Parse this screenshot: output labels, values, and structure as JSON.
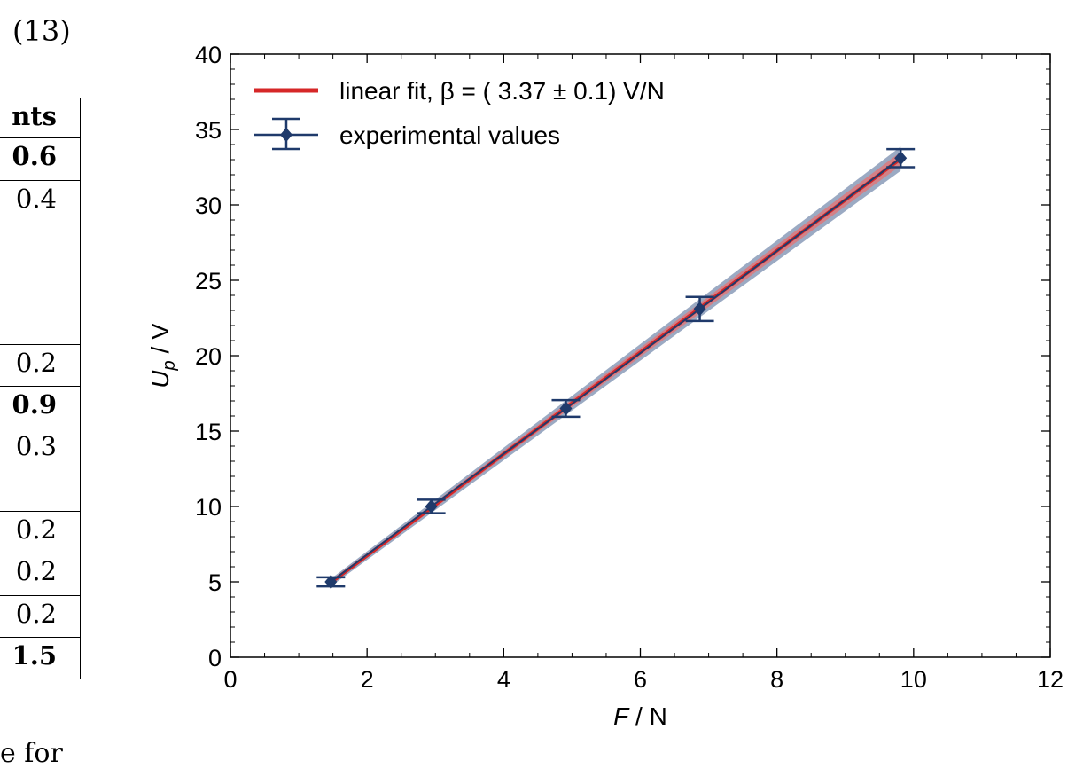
{
  "equation_number": "(13)",
  "table": {
    "header": "nts",
    "rows": [
      {
        "value": "0.6",
        "bold": true
      },
      {
        "value": "0.4",
        "bold": false
      },
      {
        "value": "0.2",
        "bold": false
      },
      {
        "value": "0.9",
        "bold": true
      },
      {
        "value": "0.3",
        "bold": false
      },
      {
        "value": "0.2",
        "bold": false
      },
      {
        "value": "0.2",
        "bold": false
      },
      {
        "value": "0.2",
        "bold": false
      },
      {
        "value": "1.5",
        "bold": true
      }
    ]
  },
  "bottom_text": "e for",
  "chart_data": {
    "type": "scatter",
    "xlabel_var": "F",
    "xlabel_unit": " / N",
    "ylabel_var": "U",
    "ylabel_sub": "p",
    "ylabel_unit": " / V",
    "xlim": [
      0,
      12
    ],
    "ylim": [
      0,
      40
    ],
    "xticks": [
      0,
      2,
      4,
      6,
      8,
      10,
      12
    ],
    "yticks": [
      0,
      5,
      10,
      15,
      20,
      25,
      30,
      35,
      40
    ],
    "grid": false,
    "legend_placement": "top-left",
    "series": [
      {
        "name": "linear fit, β = ( 3.37 ± 0.1) V/N",
        "kind": "line",
        "color": "#d62728",
        "slope": 3.37,
        "x_range": [
          1.47,
          9.81
        ]
      },
      {
        "name": "experimental values",
        "kind": "errorbar",
        "color": "#1f3a6b",
        "x": [
          1.47,
          2.94,
          4.91,
          6.87,
          9.81
        ],
        "y": [
          5.0,
          10.0,
          16.5,
          23.1,
          33.1
        ],
        "yerr": [
          0.3,
          0.45,
          0.55,
          0.8,
          0.6
        ]
      }
    ],
    "band_color": "#8a9bb8",
    "fit_band_color": "#e57373"
  }
}
